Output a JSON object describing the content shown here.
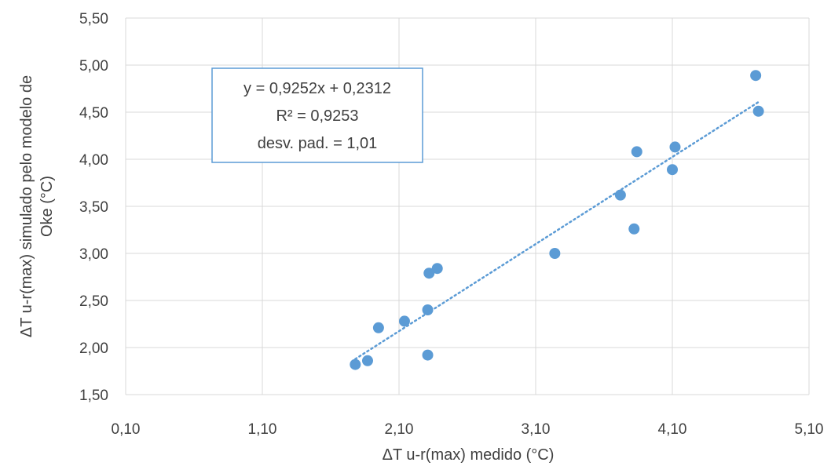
{
  "chart_data": {
    "type": "scatter",
    "xlabel": "ΔT u-r(max) medido (°C)",
    "ylabel_lines": [
      "ΔT u-r(max) simulado pelo modelo de",
      "Oke (°C)"
    ],
    "xlim": [
      0.1,
      5.1
    ],
    "ylim": [
      1.5,
      5.5
    ],
    "x_ticks": [
      0.1,
      1.1,
      2.1,
      3.1,
      4.1,
      5.1
    ],
    "x_tick_labels": [
      "0,10",
      "1,10",
      "2,10",
      "3,10",
      "4,10",
      "5,10"
    ],
    "y_ticks": [
      1.5,
      2.0,
      2.5,
      3.0,
      3.5,
      4.0,
      4.5,
      5.0,
      5.5
    ],
    "y_tick_labels": [
      "1,50",
      "2,00",
      "2,50",
      "3,00",
      "3,50",
      "4,00",
      "4,50",
      "5,00",
      "5,50"
    ],
    "grid": true,
    "series": [
      {
        "points": [
          {
            "x": 1.78,
            "y": 1.82
          },
          {
            "x": 1.87,
            "y": 1.86
          },
          {
            "x": 1.95,
            "y": 2.21
          },
          {
            "x": 2.14,
            "y": 2.28
          },
          {
            "x": 2.31,
            "y": 1.92
          },
          {
            "x": 2.31,
            "y": 2.4
          },
          {
            "x": 2.32,
            "y": 2.79
          },
          {
            "x": 2.38,
            "y": 2.84
          },
          {
            "x": 3.24,
            "y": 3.0
          },
          {
            "x": 3.72,
            "y": 3.62
          },
          {
            "x": 3.82,
            "y": 3.26
          },
          {
            "x": 3.84,
            "y": 4.08
          },
          {
            "x": 4.1,
            "y": 3.89
          },
          {
            "x": 4.12,
            "y": 4.13
          },
          {
            "x": 4.71,
            "y": 4.89
          },
          {
            "x": 4.73,
            "y": 4.51
          }
        ]
      }
    ],
    "trendline": {
      "slope": 0.9252,
      "intercept": 0.2312,
      "x_range": [
        1.78,
        4.73
      ]
    },
    "annotation": {
      "lines": [
        "y = 0,9252x + 0,2312",
        "R² = 0,9253",
        "desv. pad. = 1,01"
      ]
    },
    "colors": {
      "point": "#5b9bd5",
      "trendline": "#5b9bd5",
      "grid": "#d9d9d9",
      "box_border": "#5b9bd5"
    }
  }
}
